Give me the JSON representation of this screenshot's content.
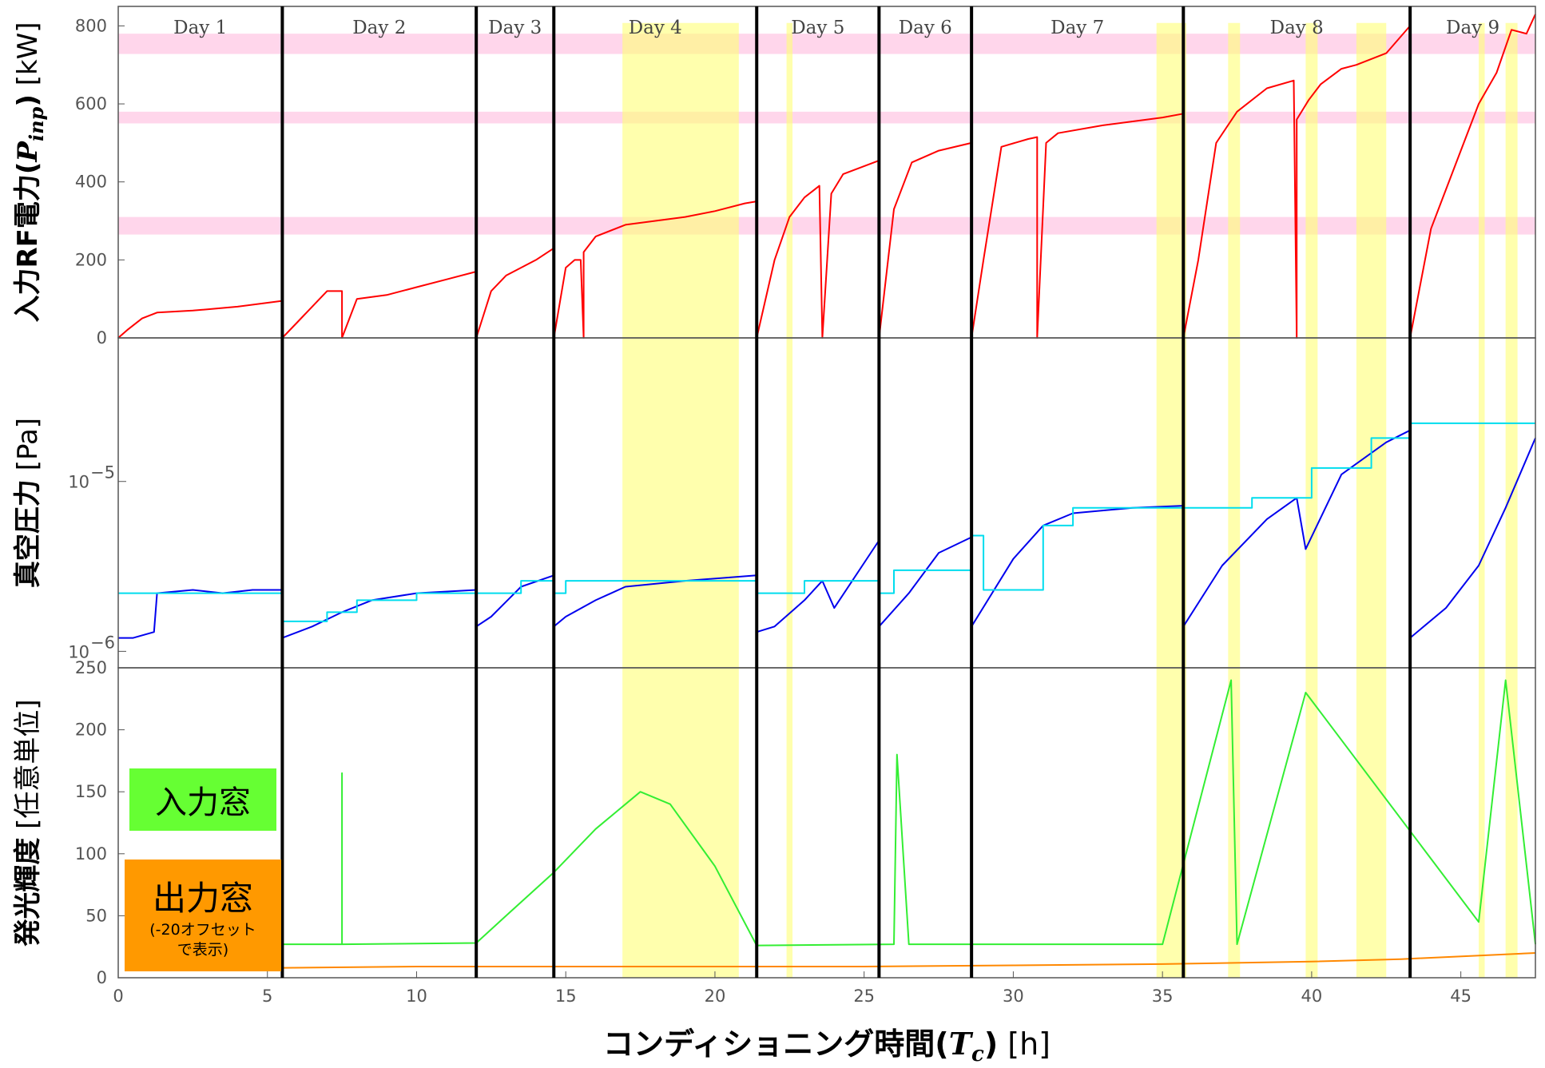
{
  "chart_data": [
    {
      "type": "line",
      "panel": "top",
      "ylabel": "入力RF電力 (P_inp) [kW]",
      "ylabel_parts": {
        "main": "入力RF電力(",
        "var": "P",
        "sub": "inp",
        "close": ")",
        "unit": "[kW]"
      },
      "ylim": [
        0,
        850
      ],
      "yticks": [
        "800",
        "600",
        "400",
        "200",
        "0"
      ],
      "days": [
        "Day 1",
        "Day 2",
        "Day 3",
        "Day 4",
        "Day 5",
        "Day 6",
        "Day 7",
        "Day 8",
        "Day 9"
      ],
      "day_bounds_h": [
        0,
        5.5,
        12,
        14.6,
        21.4,
        25.5,
        28.6,
        35.7,
        43.3,
        47.5
      ],
      "power_target_bands_kW": [
        [
          265,
          310
        ],
        [
          550,
          580
        ],
        [
          728,
          780
        ]
      ],
      "series": [
        {
          "color": "#ff0000",
          "x": [
            0,
            0.3,
            0.8,
            1.3,
            2.5,
            4.0,
            5.5,
            5.5,
            6.0,
            7.0,
            7.5,
            7.5,
            8.0,
            9.0,
            10.0,
            11.0,
            12.0,
            12.0,
            12.5,
            13.0,
            14.0,
            14.6,
            14.6,
            15.0,
            15.3,
            15.5,
            15.6,
            15.6,
            16.0,
            17.0,
            18.0,
            19.0,
            20.0,
            21.0,
            21.4,
            21.4,
            22.0,
            22.5,
            23.0,
            23.5,
            23.6,
            23.9,
            24.3,
            25.5,
            25.5,
            26.0,
            26.6,
            27.5,
            28.6,
            28.6,
            29.0,
            29.6,
            30.5,
            30.8,
            30.8,
            31.1,
            31.5,
            33.0,
            35.0,
            35.7,
            35.7,
            36.2,
            36.8,
            37.5,
            38.5,
            39.4,
            39.5,
            39.5,
            39.9,
            40.3,
            41.0,
            41.5,
            42.5,
            43.3,
            43.3,
            44.0,
            45.0,
            45.6,
            46.2,
            46.7,
            47.2,
            47.5
          ],
          "y": [
            0,
            20,
            50,
            65,
            70,
            80,
            95,
            0,
            40,
            120,
            120,
            0,
            100,
            110,
            130,
            150,
            170,
            0,
            120,
            160,
            200,
            230,
            0,
            180,
            200,
            200,
            0,
            220,
            260,
            290,
            300,
            310,
            325,
            345,
            350,
            0,
            200,
            310,
            360,
            390,
            0,
            370,
            420,
            455,
            0,
            330,
            450,
            480,
            500,
            0,
            200,
            490,
            510,
            515,
            0,
            500,
            525,
            545,
            565,
            575,
            0,
            200,
            500,
            580,
            640,
            660,
            0,
            560,
            610,
            650,
            690,
            700,
            730,
            800,
            0,
            280,
            480,
            600,
            680,
            790,
            780,
            830
          ]
        }
      ]
    },
    {
      "type": "line",
      "panel": "middle",
      "ylabel": "真空圧力 [Pa]",
      "ylabel_parts": {
        "main": "真空圧力",
        "unit": "[Pa]"
      },
      "yscale": "log",
      "ylim": [
        8e-07,
        7e-05
      ],
      "yticks": [
        {
          "base": "10",
          "exp": "−5",
          "value": 1e-05
        },
        {
          "base": "10",
          "exp": "−6",
          "value": 1e-06
        }
      ],
      "series": [
        {
          "color": "#0000ee",
          "x": [
            0,
            0.5,
            1.2,
            1.3,
            2.5,
            3.5,
            4.5,
            5.5,
            5.5,
            6.5,
            7.5,
            8.5,
            10.0,
            12.0,
            12.0,
            12.5,
            13.5,
            14.6,
            14.6,
            15.0,
            16.0,
            17.0,
            19.0,
            21.4,
            21.4,
            22.0,
            23.0,
            23.6,
            24.0,
            25.5,
            25.5,
            26.5,
            27.5,
            28.6,
            28.6,
            30.0,
            31.0,
            32.0,
            34.0,
            35.7,
            35.7,
            37.0,
            38.5,
            39.5,
            39.8,
            41.0,
            42.5,
            43.3,
            43.3,
            44.5,
            45.6,
            46.5,
            47.5
          ],
          "y": [
            1.2e-06,
            1.2e-06,
            1.3e-06,
            2.2e-06,
            2.3e-06,
            2.2e-06,
            2.3e-06,
            2.3e-06,
            1.2e-06,
            1.4e-06,
            1.7e-06,
            2e-06,
            2.2e-06,
            2.3e-06,
            1.4e-06,
            1.6e-06,
            2.4e-06,
            2.8e-06,
            1.4e-06,
            1.6e-06,
            2e-06,
            2.4e-06,
            2.6e-06,
            2.8e-06,
            1.3e-06,
            1.4e-06,
            2e-06,
            2.6e-06,
            1.8e-06,
            4.5e-06,
            1.4e-06,
            2.2e-06,
            3.8e-06,
            4.7e-06,
            1.4e-06,
            3.5e-06,
            5.5e-06,
            6.5e-06,
            7e-06,
            7.2e-06,
            1.4e-06,
            3.2e-06,
            6e-06,
            8e-06,
            4e-06,
            1.1e-05,
            1.7e-05,
            2e-05,
            1.2e-06,
            1.8e-06,
            3.2e-06,
            7e-06,
            1.8e-05
          ]
        },
        {
          "color": "#00ddee",
          "x": [
            0,
            5.5,
            5.5,
            7.0,
            7.0,
            8.0,
            8.0,
            10.0,
            10.0,
            12.0,
            12.0,
            13.5,
            13.5,
            14.6,
            14.6,
            15.0,
            15.0,
            21.4,
            21.4,
            23.0,
            23.0,
            25.5,
            25.5,
            26.0,
            26.0,
            28.6,
            28.6,
            29.0,
            29.0,
            31.0,
            31.0,
            32.0,
            32.0,
            35.7,
            35.7,
            38.0,
            38.0,
            40.0,
            40.0,
            42.0,
            42.0,
            43.3,
            43.3,
            47.5
          ],
          "y": [
            2.2e-06,
            2.2e-06,
            1.5e-06,
            1.5e-06,
            1.7e-06,
            1.7e-06,
            2e-06,
            2e-06,
            2.2e-06,
            2.2e-06,
            2.2e-06,
            2.2e-06,
            2.6e-06,
            2.6e-06,
            2.2e-06,
            2.2e-06,
            2.6e-06,
            2.6e-06,
            2.2e-06,
            2.2e-06,
            2.6e-06,
            2.6e-06,
            2.2e-06,
            2.2e-06,
            3e-06,
            3e-06,
            4.8e-06,
            4.8e-06,
            2.3e-06,
            2.3e-06,
            5.5e-06,
            5.5e-06,
            7e-06,
            7e-06,
            7e-06,
            7e-06,
            8e-06,
            8e-06,
            1.2e-05,
            1.2e-05,
            1.8e-05,
            1.8e-05,
            2.2e-05,
            2.2e-05
          ]
        }
      ]
    },
    {
      "type": "line",
      "panel": "bottom",
      "ylabel": "発光輝度 [任意単位]",
      "ylabel_parts": {
        "main": "発光輝度",
        "unit": "[任意単位]"
      },
      "xlabel": "コンディショニング時間(T_c) [h]",
      "xlabel_parts": {
        "main": "コンディショニング時間(",
        "var": "T",
        "sub": "c",
        "close": ")",
        "unit": "[h]"
      },
      "xlim": [
        0,
        47.5
      ],
      "xticks": [
        "0",
        "5",
        "10",
        "15",
        "20",
        "25",
        "30",
        "35",
        "40",
        "45"
      ],
      "ylim": [
        0,
        250
      ],
      "yticks": [
        "250",
        "200",
        "150",
        "100",
        "50",
        "0"
      ],
      "series": [
        {
          "name": "入力窓",
          "color": "#33ee33",
          "x": [
            5.5,
            7.5,
            7.5,
            7.5,
            12.0,
            13.0,
            14.6,
            16.0,
            17.5,
            18.5,
            20.0,
            21.4,
            26.0,
            26.1,
            26.5,
            35.0,
            37.3,
            37.5,
            39.8,
            45.6,
            46.5,
            47.5
          ],
          "y": [
            27,
            27,
            165,
            27,
            28,
            50,
            85,
            120,
            150,
            140,
            90,
            26,
            27,
            180,
            27,
            27,
            240,
            27,
            230,
            45,
            240,
            27
          ]
        },
        {
          "name": "出力窓",
          "color": "#ff8800",
          "x": [
            5.5,
            10,
            15,
            20,
            25,
            30,
            35,
            40,
            43,
            47.5
          ],
          "y": [
            8,
            9,
            9,
            9,
            9,
            10,
            11,
            13,
            15,
            20
          ]
        }
      ]
    }
  ],
  "legend": {
    "input_window": "入力窓",
    "output_window": "出力窓",
    "output_note_1": "(-20オフセット",
    "output_note_2": "で表示)"
  },
  "highlight_windows_h": [
    [
      16.9,
      20.8
    ],
    [
      22.4,
      22.6
    ],
    [
      34.8,
      35.8
    ],
    [
      37.2,
      37.6
    ],
    [
      39.8,
      40.2
    ],
    [
      41.5,
      42.5
    ],
    [
      45.6,
      45.8
    ],
    [
      46.5,
      46.9
    ]
  ],
  "colors": {
    "band": "#ff99cc",
    "highlight": "#ffff77",
    "day_divider": "#000000"
  }
}
